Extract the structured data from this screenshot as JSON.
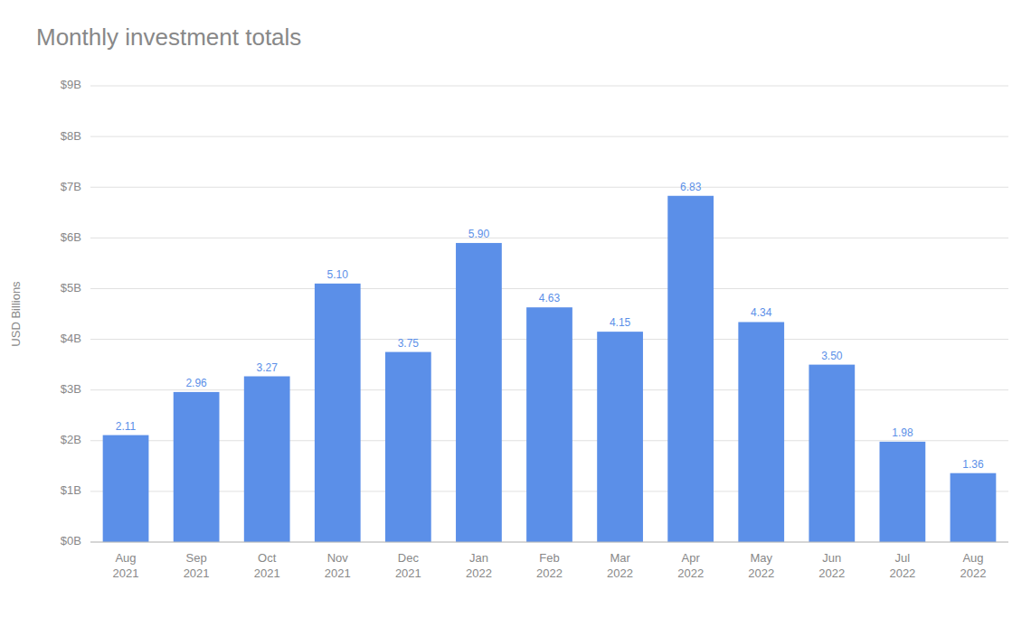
{
  "chart_data": {
    "type": "bar",
    "title": "Monthly investment totals",
    "ylabel": "USD Billions",
    "categories": [
      "Aug\n2021",
      "Sep\n2021",
      "Oct\n2021",
      "Nov\n2021",
      "Dec\n2021",
      "Jan\n2022",
      "Feb\n2022",
      "Mar\n2022",
      "Apr\n2022",
      "May\n2022",
      "Jun\n2022",
      "Jul\n2022",
      "Aug\n2022"
    ],
    "values": [
      2.11,
      2.96,
      3.27,
      5.1,
      3.75,
      5.9,
      4.63,
      4.15,
      6.83,
      4.34,
      3.5,
      1.98,
      1.36
    ],
    "value_labels": [
      "2.11",
      "2.96",
      "3.27",
      "5.10",
      "3.75",
      "5.90",
      "4.63",
      "4.15",
      "6.83",
      "4.34",
      "3.50",
      "1.98",
      "1.36"
    ],
    "data_labels": true,
    "color": "#5B8FE8",
    "ylim": [
      0,
      9
    ],
    "yticks": [
      {
        "value": 0,
        "label": "$0B"
      },
      {
        "value": 1,
        "label": "$1B"
      },
      {
        "value": 2,
        "label": "$2B"
      },
      {
        "value": 3,
        "label": "$3B"
      },
      {
        "value": 4,
        "label": "$4B"
      },
      {
        "value": 5,
        "label": "$5B"
      },
      {
        "value": 6,
        "label": "$6B"
      },
      {
        "value": 7,
        "label": "$7B"
      },
      {
        "value": 8,
        "label": "$8B"
      },
      {
        "value": 9,
        "label": "$9B"
      }
    ],
    "grid": true
  }
}
